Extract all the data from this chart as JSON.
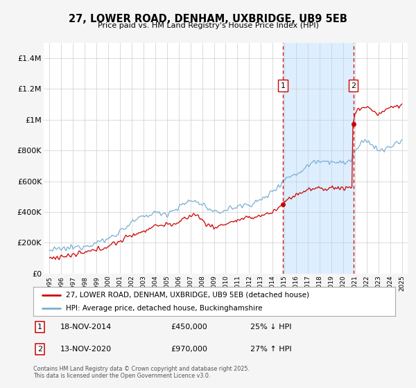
{
  "title": "27, LOWER ROAD, DENHAM, UXBRIDGE, UB9 5EB",
  "subtitle": "Price paid vs. HM Land Registry's House Price Index (HPI)",
  "red_label": "27, LOWER ROAD, DENHAM, UXBRIDGE, UB9 5EB (detached house)",
  "blue_label": "HPI: Average price, detached house, Buckinghamshire",
  "red_color": "#cc0000",
  "blue_color": "#7bafd4",
  "marker1_date": 2014.88,
  "marker1_price": 450000,
  "marker2_date": 2020.87,
  "marker2_price": 970000,
  "vline1_x": 2014.88,
  "vline2_x": 2020.87,
  "ylim": [
    0,
    1500000
  ],
  "xlim": [
    1994.5,
    2025.5
  ],
  "yticks": [
    0,
    200000,
    400000,
    600000,
    800000,
    1000000,
    1200000,
    1400000
  ],
  "xticks": [
    1995,
    1996,
    1997,
    1998,
    1999,
    2000,
    2001,
    2002,
    2003,
    2004,
    2005,
    2006,
    2007,
    2008,
    2009,
    2010,
    2011,
    2012,
    2013,
    2014,
    2015,
    2016,
    2017,
    2018,
    2019,
    2020,
    2021,
    2022,
    2023,
    2024,
    2025
  ],
  "annotation1_date": "18-NOV-2014",
  "annotation1_price": "£450,000",
  "annotation1_hpi": "25% ↓ HPI",
  "annotation2_date": "13-NOV-2020",
  "annotation2_price": "£970,000",
  "annotation2_hpi": "27% ↑ HPI",
  "background_color": "#f5f5f5",
  "plot_bg_color": "#ffffff",
  "footer": "Contains HM Land Registry data © Crown copyright and database right 2025.\nThis data is licensed under the Open Government Licence v3.0.",
  "span_color": "#ddeeff",
  "grid_color": "#cccccc"
}
